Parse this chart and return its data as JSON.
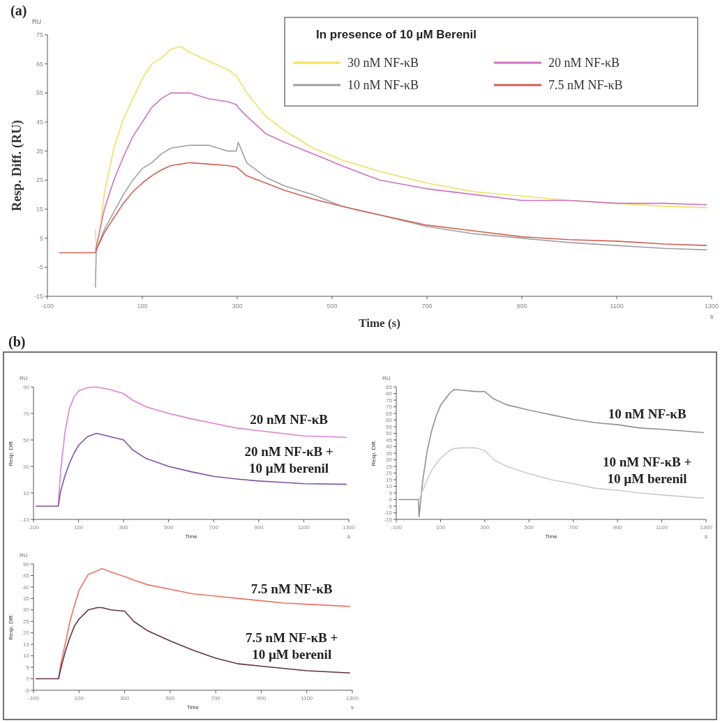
{
  "chart_data": [
    {
      "type": "line",
      "title": "(a)",
      "xlabel": "Time (s)",
      "ylabel": "Resp. Diff. (RU)",
      "legend_title": "In presence of 10 µM Berenil",
      "legend": "top right",
      "annotations": [
        "RU",
        "s"
      ],
      "xlim": [
        -100,
        1300
      ],
      "xticks": [
        -100,
        100,
        300,
        500,
        700,
        900,
        1100,
        1300
      ],
      "ylim": [
        -15,
        75
      ],
      "yticks": [
        -15,
        -5,
        5,
        15,
        25,
        35,
        45,
        55,
        65,
        75
      ],
      "series": [
        {
          "name": "30 nM NF-κB",
          "color": "#f0e060",
          "x": [
            1,
            3,
            10,
            20,
            40,
            60,
            80,
            100,
            120,
            140,
            160,
            180,
            200,
            240,
            280,
            298,
            302,
            320,
            360,
            400,
            460,
            520,
            600,
            700,
            800,
            900,
            1000,
            1100,
            1200,
            1290
          ],
          "values": [
            8,
            2,
            7,
            20.5,
            36,
            46,
            53,
            60,
            65,
            67,
            70,
            71,
            69,
            66,
            63,
            61,
            60,
            55,
            47,
            42,
            36,
            32,
            28,
            24,
            21,
            19.5,
            18,
            17,
            16,
            15.5
          ]
        },
        {
          "name": "20 nM NF-κB",
          "color": "#d070c0",
          "x": [
            1,
            3,
            20,
            40,
            60,
            80,
            100,
            120,
            140,
            160,
            200,
            240,
            280,
            298,
            302,
            320,
            360,
            400,
            460,
            520,
            600,
            700,
            800,
            900,
            1000,
            1100,
            1200,
            1290
          ],
          "values": [
            1,
            2,
            15,
            25,
            33,
            40,
            45,
            50,
            53,
            55,
            55,
            53,
            52,
            51,
            50,
            47,
            41,
            38,
            34,
            30,
            25,
            22,
            20,
            18,
            18,
            17,
            17,
            16.5
          ]
        },
        {
          "name": "10 nM NF-κB",
          "color": "#a0a0a0",
          "x": [
            1,
            3,
            20,
            40,
            60,
            80,
            100,
            120,
            140,
            160,
            200,
            240,
            280,
            298,
            302,
            320,
            360,
            400,
            460,
            520,
            600,
            700,
            800,
            900,
            1000,
            1100,
            1200,
            1290
          ],
          "values": [
            -12,
            1,
            8,
            14,
            20,
            25,
            29,
            31,
            34,
            36,
            37,
            37,
            35,
            35,
            38,
            31,
            26,
            23,
            20,
            16,
            13,
            9,
            6.5,
            5,
            3.5,
            2.5,
            1.5,
            1
          ]
        },
        {
          "name": "7.5 nM NF-κB",
          "color": "#d06050",
          "x": [
            -75,
            -40,
            -5,
            1,
            3,
            20,
            40,
            60,
            80,
            100,
            120,
            140,
            160,
            200,
            240,
            280,
            298,
            302,
            320,
            360,
            400,
            460,
            520,
            600,
            700,
            800,
            900,
            1000,
            1100,
            1200,
            1290
          ],
          "values": [
            0,
            0,
            0,
            0,
            1,
            7,
            12,
            17,
            21,
            24,
            26.5,
            28.5,
            30,
            31,
            30.5,
            30,
            29.5,
            29,
            26.5,
            24,
            21.5,
            18.5,
            16,
            13,
            9.5,
            7.5,
            5.5,
            4.5,
            4,
            3,
            2.5
          ]
        }
      ]
    },
    {
      "type": "line",
      "title": "(b)",
      "xlabel": "Time",
      "ylabel": "Resp. Diff.",
      "annotations": [
        "RU",
        "s"
      ],
      "xlim": [
        -100,
        1300
      ],
      "xticks": [
        -100,
        100,
        300,
        500,
        700,
        900,
        1100,
        1300
      ],
      "ylim": [
        -10,
        90
      ],
      "yticks": [
        -10,
        10,
        30,
        50,
        70,
        90
      ],
      "series": [
        {
          "name": "20 nM NF-κB",
          "color": "#e080d0",
          "x": [
            10,
            20,
            40,
            60,
            80,
            100,
            140,
            180,
            240,
            300,
            340,
            400,
            500,
            600,
            700,
            800,
            900,
            1000,
            1100,
            1290
          ],
          "values": [
            0,
            26,
            56,
            74,
            82.5,
            87,
            89.5,
            90,
            88,
            85,
            80,
            75,
            70,
            66,
            62.5,
            59,
            57,
            55,
            53,
            52
          ]
        },
        {
          "name": "20 nM NF-κB + 10 µM berenil",
          "color": "#8050a0",
          "x": [
            -90,
            -40,
            5,
            10,
            20,
            40,
            60,
            80,
            100,
            140,
            180,
            240,
            300,
            340,
            400,
            500,
            600,
            700,
            800,
            900,
            1000,
            1100,
            1290
          ],
          "values": [
            0,
            0,
            0,
            0,
            11,
            23,
            32.5,
            40,
            46,
            52.5,
            55,
            52.5,
            50,
            42.5,
            36,
            30,
            26,
            22.5,
            20.5,
            19,
            18,
            17,
            16.5
          ]
        }
      ]
    },
    {
      "type": "line",
      "xlabel": "Time",
      "ylabel": "Resp. Diff.",
      "annotations": [
        "RU",
        "s"
      ],
      "xlim": [
        -100,
        1300
      ],
      "xticks": [
        -100,
        100,
        300,
        500,
        700,
        900,
        1100,
        1300
      ],
      "ylim": [
        -15,
        85
      ],
      "yticks": [
        -15,
        -10,
        -5,
        0,
        5,
        10,
        15,
        20,
        25,
        30,
        35,
        40,
        45,
        50,
        55,
        60,
        65,
        70,
        75,
        80,
        85
      ],
      "series": [
        {
          "name": "10 nM NF-κB",
          "color": "#909090",
          "x": [
            -90,
            -40,
            0,
            3,
            20,
            40,
            60,
            80,
            100,
            140,
            160,
            200,
            260,
            300,
            340,
            400,
            500,
            600,
            700,
            800,
            900,
            1000,
            1100,
            1290
          ],
          "values": [
            0,
            0,
            0,
            -13,
            15,
            37,
            52,
            63,
            71,
            80,
            83,
            82.5,
            81.5,
            81.5,
            76,
            71.5,
            67.5,
            64,
            60.5,
            58,
            56.5,
            54,
            53,
            50.5
          ]
        },
        {
          "name": "10 nM NF-κB + 10 µM berenil",
          "color": "#cccccc",
          "x": [
            3,
            20,
            40,
            60,
            80,
            100,
            140,
            160,
            200,
            260,
            300,
            340,
            400,
            500,
            600,
            700,
            800,
            900,
            1000,
            1100,
            1290
          ],
          "values": [
            0,
            7,
            15,
            22,
            27,
            31,
            37,
            38.5,
            39,
            39,
            37,
            30,
            25,
            19.5,
            15,
            12,
            8.5,
            7,
            5,
            3.5,
            1
          ]
        }
      ]
    },
    {
      "type": "line",
      "xlabel": "Time",
      "ylabel": "Resp. Diff.",
      "annotations": [
        "RU",
        "s"
      ],
      "xlim": [
        -100,
        1300
      ],
      "xticks": [
        -100,
        100,
        300,
        500,
        700,
        900,
        1100,
        1300
      ],
      "ylim": [
        -5,
        50
      ],
      "yticks": [
        -5,
        0,
        5,
        10,
        15,
        20,
        25,
        30,
        35,
        40,
        45,
        50
      ],
      "series": [
        {
          "name": "7.5 nM NF-κB",
          "color": "#f07060",
          "x": [
            10,
            20,
            40,
            60,
            80,
            100,
            140,
            180,
            200,
            240,
            300,
            340,
            400,
            500,
            600,
            700,
            800,
            900,
            1000,
            1100,
            1290
          ],
          "values": [
            0,
            6.5,
            15.5,
            25,
            32,
            38.5,
            45.5,
            47,
            48,
            46.5,
            44.5,
            43,
            41,
            39,
            37,
            36,
            35,
            34,
            33,
            32.5,
            31.5
          ]
        },
        {
          "name": "7.5 nM NF-κB + 10 µM berenil",
          "color": "#603040",
          "x": [
            -90,
            -40,
            5,
            10,
            20,
            40,
            60,
            80,
            100,
            140,
            180,
            200,
            240,
            300,
            340,
            400,
            500,
            600,
            700,
            800,
            900,
            1000,
            1100,
            1290
          ],
          "values": [
            0,
            0,
            0,
            0,
            4.5,
            12,
            18,
            23,
            26,
            30,
            31,
            31,
            30,
            29.5,
            25,
            21,
            16.5,
            12.5,
            9,
            6.5,
            5.5,
            4.5,
            3.5,
            2.5
          ]
        }
      ]
    }
  ]
}
